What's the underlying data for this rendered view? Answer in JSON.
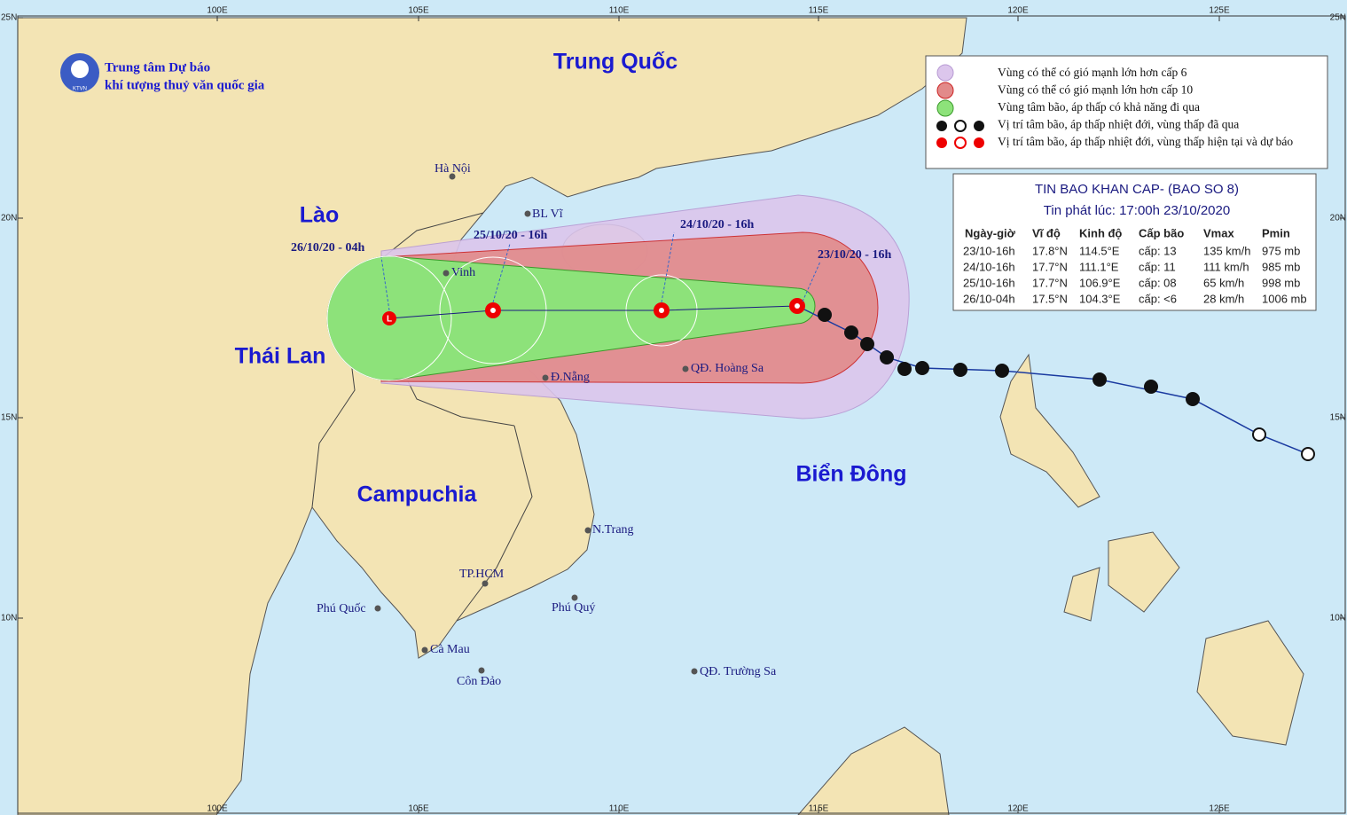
{
  "header": {
    "org_line1": "Trung tâm Dự báo",
    "org_line2": "khí tượng thuỷ văn quốc gia",
    "logo": "KTVN"
  },
  "axes": {
    "lon": [
      "100E",
      "105E",
      "110E",
      "115E",
      "120E",
      "125E"
    ],
    "lat": [
      "25N",
      "20N",
      "15N",
      "10N"
    ]
  },
  "legend": [
    "Vùng có thể có gió mạnh lớn hơn cấp 6",
    "Vùng có thể có gió mạnh lớn hơn cấp 10",
    "Vùng tâm bão, áp thấp có khả năng đi qua",
    "Vị trí tâm bão, áp thấp nhiệt đới, vùng thấp đã qua",
    "Vị trí tâm bão, áp thấp nhiệt đới, vùng thấp hiện tại và dự báo"
  ],
  "low_symbol": "L",
  "bulletin": {
    "title": "TIN BAO KHAN CAP- (BAO SO 8)",
    "issued": "Tin phát lúc: 17:00h 23/10/2020",
    "columns": [
      "Ngày-giờ",
      "Vĩ độ",
      "Kinh độ",
      "Cấp bão",
      "Vmax",
      "Pmin"
    ],
    "rows": [
      [
        "23/10-16h",
        "17.8°N",
        "114.5°E",
        "cấp: 13",
        "135 km/h",
        "975 mb"
      ],
      [
        "24/10-16h",
        "17.7°N",
        "111.1°E",
        "cấp: 11",
        "111 km/h",
        "985 mb"
      ],
      [
        "25/10-16h",
        "17.7°N",
        "106.9°E",
        "cấp: 08",
        "65 km/h",
        "998 mb"
      ],
      [
        "26/10-04h",
        "17.5°N",
        "104.3°E",
        "cấp: <6",
        "28 km/h",
        "1006 mb"
      ]
    ]
  },
  "regions": [
    "Trung Quốc",
    "Lào",
    "Thái Lan",
    "Campuchia",
    "Biển Đông"
  ],
  "places": [
    "Hà Nội",
    "BL Vĩ",
    "Vinh",
    "Đ.Nẵng",
    "QĐ. Hoàng Sa",
    "N.Trang",
    "TP.HCM",
    "Phú Quý",
    "Phú Quốc",
    "Cà Mau",
    "Côn Đảo",
    "QĐ. Trường Sa"
  ],
  "forecast_labels": [
    "26/10/20 - 04h",
    "25/10/20 - 16h",
    "24/10/20 - 16h",
    "23/10/20 - 16h"
  ]
}
